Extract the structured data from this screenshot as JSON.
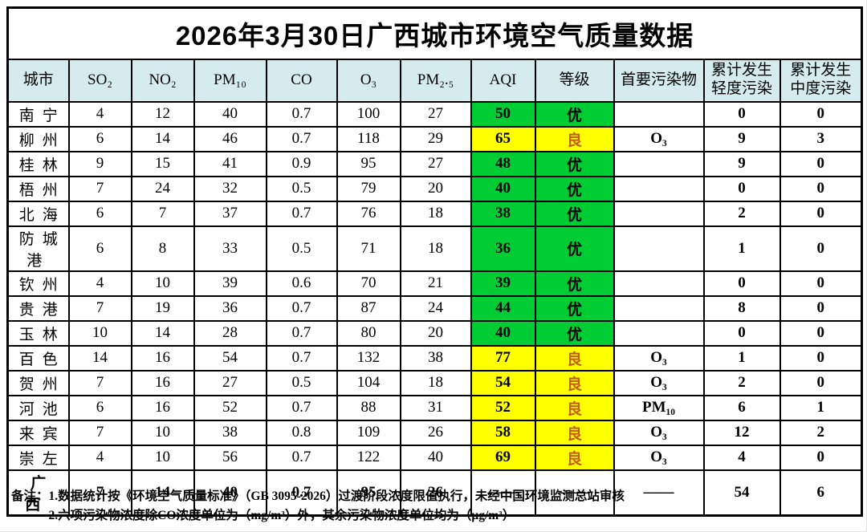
{
  "title": "2026年3月30日广西城市环境空气质量数据",
  "colors": {
    "header_bg": "#d5ecee",
    "excellent_bg": "#00cc33",
    "good_bg": "#ffff00",
    "excellent_text": "#000000",
    "good_text": "#c55a11",
    "border": "#000000"
  },
  "table": {
    "columns": [
      "城市",
      "SO₂",
      "NO₂",
      "PM₁₀",
      "CO",
      "O₃",
      "PM₂.₅",
      "AQI",
      "等级",
      "首要污染物",
      "累计发生\n轻度污染",
      "累计发生\n中度污染"
    ],
    "column_keys": [
      "city",
      "so2",
      "no2",
      "pm10",
      "co",
      "o3",
      "pm25",
      "aqi",
      "level",
      "pollutant",
      "light",
      "moderate"
    ],
    "rows": [
      {
        "city": "南宁",
        "so2": "4",
        "no2": "12",
        "pm10": "40",
        "co": "0.7",
        "o3": "100",
        "pm25": "27",
        "aqi": "50",
        "level": "优",
        "pollutant": "",
        "light": "0",
        "moderate": "0"
      },
      {
        "city": "柳州",
        "so2": "6",
        "no2": "14",
        "pm10": "46",
        "co": "0.7",
        "o3": "118",
        "pm25": "29",
        "aqi": "65",
        "level": "良",
        "pollutant": "O₃",
        "light": "9",
        "moderate": "3"
      },
      {
        "city": "桂林",
        "so2": "9",
        "no2": "15",
        "pm10": "41",
        "co": "0.9",
        "o3": "95",
        "pm25": "27",
        "aqi": "48",
        "level": "优",
        "pollutant": "",
        "light": "9",
        "moderate": "0"
      },
      {
        "city": "梧州",
        "so2": "7",
        "no2": "24",
        "pm10": "32",
        "co": "0.5",
        "o3": "79",
        "pm25": "20",
        "aqi": "40",
        "level": "优",
        "pollutant": "",
        "light": "0",
        "moderate": "0"
      },
      {
        "city": "北海",
        "so2": "6",
        "no2": "7",
        "pm10": "37",
        "co": "0.7",
        "o3": "76",
        "pm25": "18",
        "aqi": "38",
        "level": "优",
        "pollutant": "",
        "light": "2",
        "moderate": "0"
      },
      {
        "city": "防城港",
        "so2": "6",
        "no2": "8",
        "pm10": "33",
        "co": "0.5",
        "o3": "71",
        "pm25": "18",
        "aqi": "36",
        "level": "优",
        "pollutant": "",
        "light": "1",
        "moderate": "0"
      },
      {
        "city": "钦州",
        "so2": "4",
        "no2": "10",
        "pm10": "39",
        "co": "0.6",
        "o3": "70",
        "pm25": "21",
        "aqi": "39",
        "level": "优",
        "pollutant": "",
        "light": "0",
        "moderate": "0"
      },
      {
        "city": "贵港",
        "so2": "7",
        "no2": "19",
        "pm10": "36",
        "co": "0.7",
        "o3": "87",
        "pm25": "24",
        "aqi": "44",
        "level": "优",
        "pollutant": "",
        "light": "8",
        "moderate": "0"
      },
      {
        "city": "玉林",
        "so2": "10",
        "no2": "14",
        "pm10": "28",
        "co": "0.7",
        "o3": "80",
        "pm25": "20",
        "aqi": "40",
        "level": "优",
        "pollutant": "",
        "light": "0",
        "moderate": "0"
      },
      {
        "city": "百色",
        "so2": "14",
        "no2": "16",
        "pm10": "54",
        "co": "0.7",
        "o3": "132",
        "pm25": "38",
        "aqi": "77",
        "level": "良",
        "pollutant": "O₃",
        "light": "1",
        "moderate": "0"
      },
      {
        "city": "贺州",
        "so2": "7",
        "no2": "16",
        "pm10": "27",
        "co": "0.5",
        "o3": "104",
        "pm25": "18",
        "aqi": "54",
        "level": "良",
        "pollutant": "O₃",
        "light": "2",
        "moderate": "0"
      },
      {
        "city": "河池",
        "so2": "6",
        "no2": "16",
        "pm10": "52",
        "co": "0.7",
        "o3": "88",
        "pm25": "31",
        "aqi": "52",
        "level": "良",
        "pollutant": "PM₁₀",
        "light": "6",
        "moderate": "1"
      },
      {
        "city": "来宾",
        "so2": "7",
        "no2": "10",
        "pm10": "38",
        "co": "0.8",
        "o3": "109",
        "pm25": "26",
        "aqi": "58",
        "level": "良",
        "pollutant": "O₃",
        "light": "12",
        "moderate": "2"
      },
      {
        "city": "崇左",
        "so2": "4",
        "no2": "10",
        "pm10": "56",
        "co": "0.7",
        "o3": "122",
        "pm25": "40",
        "aqi": "69",
        "level": "良",
        "pollutant": "O₃",
        "light": "4",
        "moderate": "0"
      },
      {
        "city": "广西",
        "so2": "7",
        "no2": "14",
        "pm10": "40",
        "co": "0.7",
        "o3": "95",
        "pm25": "26",
        "aqi": "——",
        "level": "——",
        "pollutant": "——",
        "light": "54",
        "moderate": "6",
        "is_summary": true
      }
    ]
  },
  "notes": {
    "label": "备注：",
    "items": [
      "1.数据统计按《环境空气质量标准》（GB 3095-2026）过渡阶段浓度限值执行，未经中国环境监测总站审核",
      "2.六项污染物浓度除CO浓度单位为（mg/m³）外，其余污染物浓度单位均为（μg/m³）"
    ]
  }
}
